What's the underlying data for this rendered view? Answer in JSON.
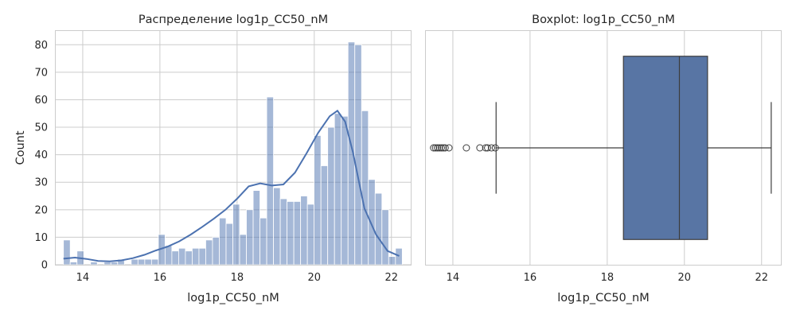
{
  "colors": {
    "bar_fill": "#4c72b0",
    "bar_fill_opacity": 0.5,
    "kde_line": "#4c72b0",
    "box_fill": "#5875a4",
    "whisker": "#3d3d3d",
    "grid": "#cccccc",
    "spine": "#cccccc"
  },
  "chart_data": [
    {
      "type": "histogram",
      "title": "Распределение log1p_CC50_nM",
      "xlabel": "log1p_CC50_nM",
      "ylabel": "Count",
      "xlim": [
        13.3,
        22.5
      ],
      "ylim": [
        0,
        85
      ],
      "xticks": [
        14,
        16,
        18,
        20,
        22
      ],
      "yticks": [
        0,
        10,
        20,
        30,
        40,
        50,
        60,
        70,
        80
      ],
      "grid": true,
      "bins": {
        "start": 13.5,
        "width": 0.1756,
        "count": 50
      },
      "counts": [
        9,
        1,
        5,
        0,
        1,
        0,
        1,
        1,
        2,
        0,
        2,
        2,
        2,
        2,
        11,
        7,
        5,
        6,
        5,
        6,
        6,
        9,
        10,
        17,
        15,
        22,
        11,
        20,
        27,
        17,
        61,
        28,
        24,
        23,
        23,
        25,
        22,
        47,
        36,
        50,
        55,
        54,
        81,
        80,
        56,
        31,
        26,
        20,
        3,
        6
      ],
      "kde": {
        "x": [
          13.5,
          13.8,
          14.1,
          14.4,
          14.7,
          15.0,
          15.3,
          15.6,
          15.9,
          16.2,
          16.5,
          16.8,
          17.1,
          17.4,
          17.7,
          18.0,
          18.3,
          18.6,
          18.9,
          19.2,
          19.5,
          19.8,
          20.1,
          20.4,
          20.6,
          20.8,
          21.0,
          21.3,
          21.6,
          21.9,
          22.2
        ],
        "y": [
          2.2,
          2.6,
          2.1,
          1.4,
          1.2,
          1.6,
          2.4,
          3.6,
          5.2,
          6.6,
          8.5,
          11.0,
          13.8,
          16.8,
          20.0,
          24.0,
          28.5,
          29.6,
          28.8,
          29.2,
          33.5,
          40.5,
          48.0,
          54.0,
          56.0,
          52.0,
          41.0,
          20.5,
          11.0,
          5.0,
          3.2
        ]
      }
    },
    {
      "type": "boxplot",
      "title": "Boxplot: log1p_CC50_nM",
      "xlabel": "log1p_CC50_nM",
      "xlim": [
        13.3,
        22.5
      ],
      "xticks": [
        14,
        16,
        18,
        20,
        22
      ],
      "grid": true,
      "box": {
        "whislo": 15.12,
        "q1": 18.42,
        "median": 19.87,
        "q3": 20.6,
        "whishi": 22.25
      },
      "fliers": [
        13.5,
        13.55,
        13.6,
        13.65,
        13.7,
        13.75,
        13.8,
        13.9,
        14.35,
        14.7,
        14.85,
        14.9,
        15.0,
        15.1
      ]
    }
  ]
}
